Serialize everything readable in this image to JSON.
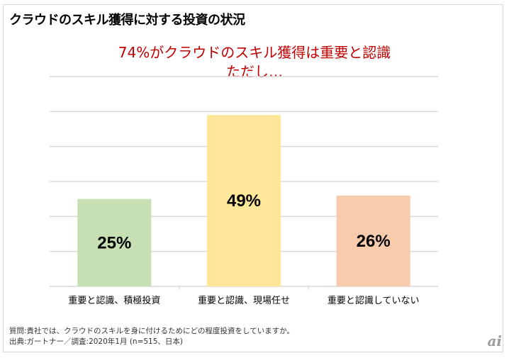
{
  "title": "クラウドのスキル獲得に対する投資の状況",
  "headline": {
    "line1": "74%がクラウドのスキル獲得は重要と認識",
    "line2": "ただし…"
  },
  "chart_data": {
    "type": "bar",
    "categories": [
      "重要と認識、積極投資",
      "重要と認識、現場任せ",
      "重要と認識していない"
    ],
    "values": [
      25,
      49,
      26
    ],
    "data_labels": [
      "25%",
      "49%",
      "26%"
    ],
    "colors": [
      "#c6e0b4",
      "#ffe699",
      "#f8cbad"
    ],
    "ylim": [
      0,
      60
    ],
    "grid": true,
    "gridline_step": 10
  },
  "notes": {
    "question": "質問:貴社では、クラウドのスキルを身に付けるためにどの程度投資をしていますか。",
    "source": "出典:ガートナー／調査:2020年1月 (n=515、日本)"
  },
  "logo": "ai"
}
